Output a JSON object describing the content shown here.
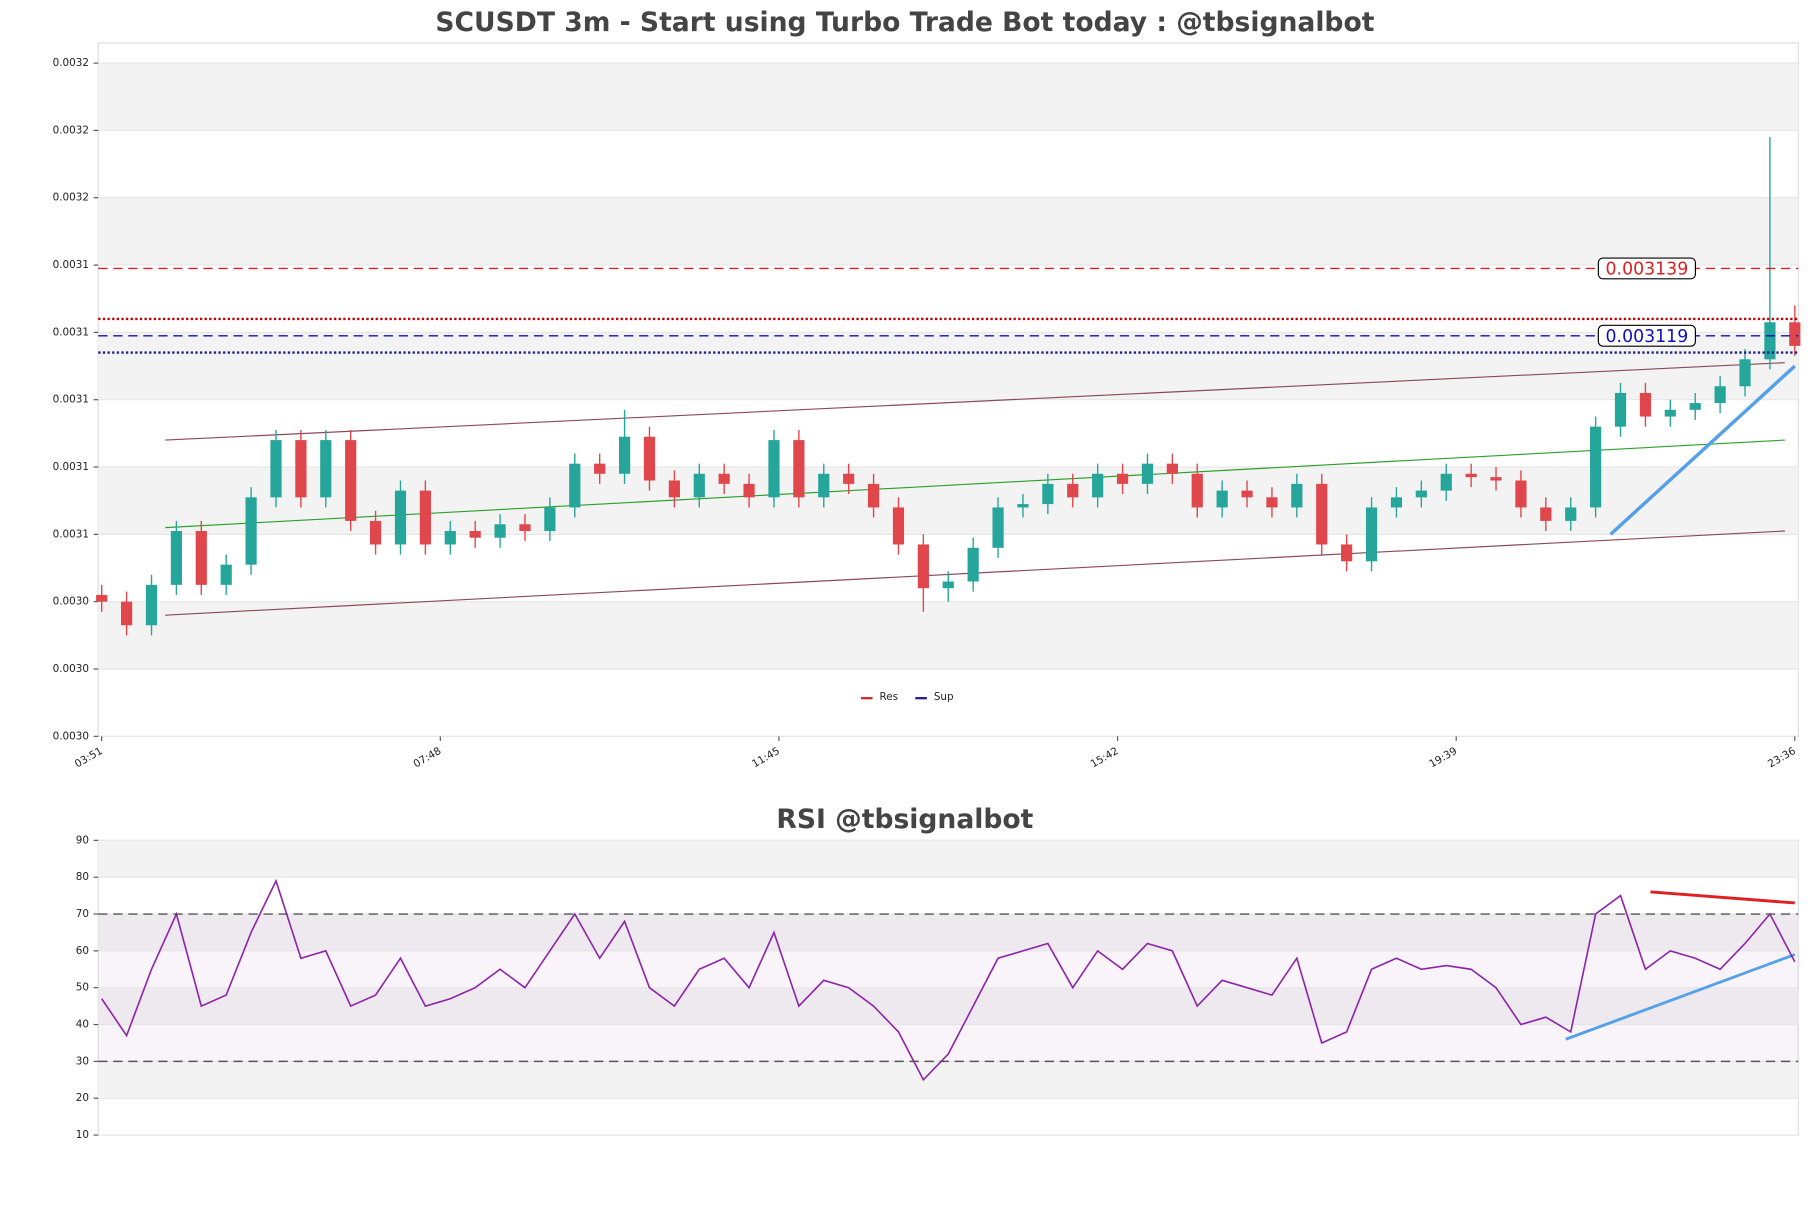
{
  "chart_data": [
    {
      "type": "candlestick",
      "title": "SCUSDT 3m - Start using Turbo Trade Bot today : @tbsignalbot",
      "up_color": "#26a69a",
      "down_color": "#e0474c",
      "open": [
        0.003042,
        0.00304,
        0.003033,
        0.003045,
        0.003061,
        0.003045,
        0.003051,
        0.003071,
        0.003088,
        0.003071,
        0.003088,
        0.003064,
        0.003057,
        0.003073,
        0.003057,
        0.003061,
        0.003059,
        0.003063,
        0.003061,
        0.003068,
        0.003081,
        0.003078,
        0.003089,
        0.003076,
        0.003071,
        0.003078,
        0.003075,
        0.003071,
        0.003088,
        0.003071,
        0.003078,
        0.003075,
        0.003068,
        0.003057,
        0.003044,
        0.003046,
        0.003056,
        0.003068,
        0.003069,
        0.003075,
        0.003071,
        0.003078,
        0.003075,
        0.003081,
        0.003078,
        0.003068,
        0.003073,
        0.003071,
        0.003068,
        0.003075,
        0.003057,
        0.003052,
        0.003068,
        0.003071,
        0.003073,
        0.003078,
        0.003077,
        0.003076,
        0.003068,
        0.003064,
        0.003068,
        0.003092,
        0.003102,
        0.003095,
        0.003097,
        0.003099,
        0.003104,
        0.003112,
        0.003123
      ],
      "high": [
        0.003045,
        0.003043,
        0.003048,
        0.003064,
        0.003064,
        0.003054,
        0.003074,
        0.003091,
        0.003091,
        0.003091,
        0.003091,
        0.003067,
        0.003076,
        0.003076,
        0.003064,
        0.003064,
        0.003066,
        0.003066,
        0.003071,
        0.003084,
        0.003084,
        0.003097,
        0.003092,
        0.003079,
        0.003081,
        0.003081,
        0.003078,
        0.003091,
        0.003091,
        0.003081,
        0.003081,
        0.003078,
        0.003071,
        0.00306,
        0.003049,
        0.003059,
        0.003071,
        0.003072,
        0.003078,
        0.003078,
        0.003081,
        0.003081,
        0.003084,
        0.003084,
        0.003081,
        0.003076,
        0.003076,
        0.003074,
        0.003078,
        0.003078,
        0.00306,
        0.003071,
        0.003074,
        0.003076,
        0.003081,
        0.003081,
        0.00308,
        0.003079,
        0.003071,
        0.003071,
        0.003095,
        0.003105,
        0.003105,
        0.0031,
        0.003102,
        0.003107,
        0.003115,
        0.003178,
        0.003128
      ],
      "low": [
        0.003037,
        0.00303,
        0.00303,
        0.003042,
        0.003042,
        0.003042,
        0.003048,
        0.003068,
        0.003068,
        0.003068,
        0.003061,
        0.003054,
        0.003054,
        0.003054,
        0.003054,
        0.003056,
        0.003056,
        0.003058,
        0.003058,
        0.003065,
        0.003075,
        0.003075,
        0.003073,
        0.003068,
        0.003068,
        0.003072,
        0.003068,
        0.003068,
        0.003068,
        0.003068,
        0.003072,
        0.003065,
        0.003054,
        0.003037,
        0.00304,
        0.003043,
        0.003053,
        0.003065,
        0.003066,
        0.003068,
        0.003068,
        0.003072,
        0.003072,
        0.003075,
        0.003065,
        0.003065,
        0.003068,
        0.003065,
        0.003065,
        0.003054,
        0.003049,
        0.003049,
        0.003065,
        0.003068,
        0.00307,
        0.003074,
        0.003073,
        0.003065,
        0.003061,
        0.003061,
        0.003065,
        0.003089,
        0.003092,
        0.003092,
        0.003094,
        0.003096,
        0.003101,
        0.003109,
        0.003113
      ],
      "close": [
        0.00304,
        0.003033,
        0.003045,
        0.003061,
        0.003045,
        0.003051,
        0.003071,
        0.003088,
        0.003071,
        0.003088,
        0.003064,
        0.003057,
        0.003073,
        0.003057,
        0.003061,
        0.003059,
        0.003063,
        0.003061,
        0.003068,
        0.003081,
        0.003078,
        0.003089,
        0.003076,
        0.003071,
        0.003078,
        0.003075,
        0.003071,
        0.003088,
        0.003071,
        0.003078,
        0.003075,
        0.003068,
        0.003057,
        0.003044,
        0.003046,
        0.003056,
        0.003068,
        0.003069,
        0.003075,
        0.003071,
        0.003078,
        0.003075,
        0.003081,
        0.003078,
        0.003068,
        0.003073,
        0.003071,
        0.003068,
        0.003075,
        0.003057,
        0.003052,
        0.003068,
        0.003071,
        0.003073,
        0.003078,
        0.003077,
        0.003076,
        0.003068,
        0.003064,
        0.003068,
        0.003092,
        0.003102,
        0.003095,
        0.003097,
        0.003099,
        0.003104,
        0.003112,
        0.003123,
        0.003116
      ],
      "xlim": [
        0,
        68
      ],
      "xticks": [
        {
          "value": 0,
          "label": "03:51"
        },
        {
          "value": 13.6,
          "label": "07:48"
        },
        {
          "value": 27.2,
          "label": "11:45"
        },
        {
          "value": 40.8,
          "label": "15:42"
        },
        {
          "value": 54.4,
          "label": "19:39"
        },
        {
          "value": 68,
          "label": "23:36"
        }
      ],
      "ylim": [
        0.003,
        0.003206
      ],
      "yticks": [
        {
          "value": 0.003,
          "label": "0.0030"
        },
        {
          "value": 0.00302,
          "label": "0.0030"
        },
        {
          "value": 0.00304,
          "label": "0.0030"
        },
        {
          "value": 0.00306,
          "label": "0.0031"
        },
        {
          "value": 0.00308,
          "label": "0.0031"
        },
        {
          "value": 0.0031,
          "label": "0.0031"
        },
        {
          "value": 0.00312,
          "label": "0.0031"
        },
        {
          "value": 0.00314,
          "label": "0.0031"
        },
        {
          "value": 0.00316,
          "label": "0.0032"
        },
        {
          "value": 0.00318,
          "label": "0.0032"
        },
        {
          "value": 0.0032,
          "label": "0.0032"
        }
      ],
      "levels": [
        {
          "value": 0.003139,
          "color": "#e02020",
          "style": "dashed",
          "labeled": true
        },
        {
          "value": 0.003124,
          "color": "#c00000",
          "style": "dotted",
          "labeled": false
        },
        {
          "value": 0.003119,
          "color": "#1010c0",
          "style": "dashed",
          "labeled": true
        },
        {
          "value": 0.003114,
          "color": "#1f1f8f",
          "style": "dotted",
          "labeled": false
        }
      ],
      "lines": [
        {
          "color": "#8b4a5a",
          "width": 1,
          "from": [
            2.55,
            0.003088
          ],
          "to": [
            67.6,
            0.003111
          ]
        },
        {
          "color": "#8b4a5a",
          "width": 1,
          "from": [
            2.55,
            0.003036
          ],
          "to": [
            67.6,
            0.003061
          ]
        },
        {
          "color": "#2ca02c",
          "width": 1,
          "from": [
            2.55,
            0.003062
          ],
          "to": [
            67.6,
            0.003088
          ]
        },
        {
          "color": "#55a0e8",
          "width": 3,
          "from": [
            60.6,
            0.00306
          ],
          "to": [
            68,
            0.00311
          ]
        }
      ],
      "legend": [
        {
          "name": "Res",
          "color": "#d62728"
        },
        {
          "name": "Sup",
          "color": "#1f1f8f"
        }
      ]
    },
    {
      "type": "line",
      "title": "RSI @tbsignalbot",
      "color": "#8e24aa",
      "values": [
        47,
        37,
        55,
        70,
        45,
        48,
        65,
        79,
        58,
        60,
        45,
        48,
        58,
        45,
        47,
        50,
        55,
        50,
        60,
        70,
        58,
        68,
        50,
        45,
        55,
        58,
        50,
        65,
        45,
        52,
        50,
        45,
        38,
        25,
        32,
        45,
        58,
        60,
        62,
        50,
        60,
        55,
        62,
        60,
        45,
        52,
        50,
        48,
        58,
        35,
        38,
        55,
        58,
        55,
        56,
        55,
        50,
        40,
        42,
        38,
        70,
        75,
        55,
        60,
        58,
        55,
        62,
        70,
        57
      ],
      "xlim": [
        0,
        68
      ],
      "ylim": [
        10,
        90
      ],
      "yticks": [
        10,
        20,
        30,
        40,
        50,
        60,
        70,
        80,
        90
      ],
      "levels": [
        {
          "value": 30,
          "color": "#555555",
          "style": "dashed"
        },
        {
          "value": 70,
          "color": "#555555",
          "style": "dashed"
        }
      ],
      "lines": [
        {
          "color": "#55a0e8",
          "width": 2.5,
          "from": [
            58.8,
            36
          ],
          "to": [
            68,
            59
          ]
        },
        {
          "color": "#e02020",
          "width": 2.5,
          "from": [
            62.2,
            76
          ],
          "to": [
            68,
            73
          ]
        }
      ]
    }
  ]
}
